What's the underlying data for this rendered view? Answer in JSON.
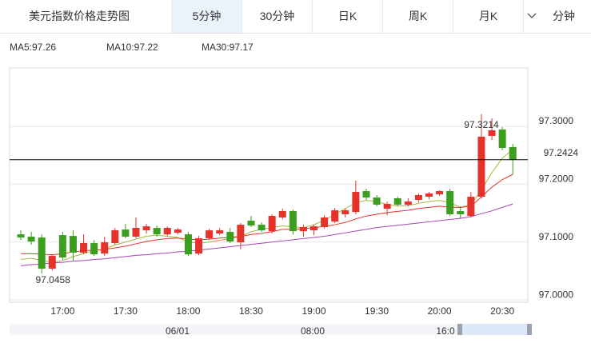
{
  "header": {
    "title": "美元指数价格走势图",
    "tabs": [
      "5分钟",
      "30分钟",
      "日K",
      "周K",
      "月K",
      "分钟"
    ]
  },
  "navigator": {
    "labels": [
      "06/01",
      "08:00",
      "16:0"
    ]
  },
  "chart_data": {
    "type": "candlestick",
    "categories": [
      null,
      null,
      null,
      null,
      "17:00",
      null,
      null,
      null,
      null,
      null,
      "17:30",
      null,
      null,
      null,
      null,
      null,
      "18:00",
      null,
      null,
      null,
      null,
      null,
      "18:30",
      null,
      null,
      null,
      null,
      null,
      "19:00",
      null,
      null,
      null,
      null,
      null,
      "19:30",
      null,
      null,
      null,
      null,
      null,
      "20:00",
      null,
      null,
      null,
      null,
      null,
      "20:30",
      null
    ],
    "open": [
      97.1134,
      97.1093,
      97.1079,
      97.0539,
      97.112,
      97.1106,
      97.0816,
      97.0982,
      97.0802,
      97.0982,
      97.1217,
      97.1093,
      97.1203,
      97.1245,
      97.1134,
      97.1162,
      97.1134,
      97.0802,
      97.1065,
      97.1148,
      97.1176,
      97.0996,
      97.1369,
      97.13,
      97.1189,
      97.1425,
      97.1535,
      97.1189,
      97.1203,
      97.1259,
      97.1355,
      97.148,
      97.1521,
      97.1881,
      97.177,
      97.1577,
      97.1757,
      97.1646,
      97.1729,
      97.1784,
      97.1826,
      97.1881,
      97.1535,
      97.1452,
      97.1784,
      97.2835,
      97.2946,
      97.2642
    ],
    "high": [
      97.1203,
      97.1176,
      97.1134,
      97.0788,
      97.1176,
      97.1203,
      97.1134,
      97.1037,
      97.1093,
      97.1245,
      97.1314,
      97.1425,
      97.1314,
      97.1286,
      97.1272,
      97.1245,
      97.1176,
      97.1106,
      97.1231,
      97.1245,
      97.1245,
      97.1328,
      97.1452,
      97.1342,
      97.148,
      97.1577,
      97.1563,
      97.13,
      97.13,
      97.1466,
      97.1591,
      97.1577,
      97.2061,
      97.1923,
      97.1812,
      97.1701,
      97.1784,
      97.1757,
      97.184,
      97.1867,
      97.1895,
      97.1923,
      97.1618,
      97.1867,
      97.3214,
      97.314,
      97.2988,
      97.2697
    ],
    "low": [
      97.1037,
      97.0954,
      97.0458,
      97.0512,
      97.0692,
      97.0678,
      97.0788,
      97.0761,
      97.0761,
      97.0954,
      97.1065,
      97.1065,
      97.1148,
      97.1093,
      97.1106,
      97.1134,
      97.0761,
      97.0775,
      97.1037,
      97.112,
      97.0982,
      97.0871,
      97.1259,
      97.1176,
      97.1148,
      97.1397,
      97.1134,
      97.1093,
      97.112,
      97.1231,
      97.1328,
      97.1425,
      97.148,
      97.1729,
      97.1618,
      97.1466,
      97.1618,
      97.1618,
      97.1687,
      97.1743,
      97.1798,
      97.1452,
      97.1411,
      97.1425,
      97.1757,
      97.2766,
      97.2586,
      97.2171
    ],
    "close": [
      97.1079,
      97.101,
      97.0539,
      97.0761,
      97.0733,
      97.0816,
      97.0982,
      97.0788,
      97.0996,
      97.1203,
      97.1093,
      97.1245,
      97.1272,
      97.1134,
      97.1245,
      97.1217,
      97.0788,
      97.1065,
      97.1203,
      97.1203,
      97.101,
      97.13,
      97.1286,
      97.1203,
      97.1452,
      97.1535,
      97.1189,
      97.1259,
      97.1272,
      97.1425,
      97.1549,
      97.1549,
      97.1867,
      97.177,
      97.1646,
      97.166,
      97.1646,
      97.1701,
      97.1812,
      97.184,
      97.1881,
      97.148,
      97.148,
      97.1784,
      97.2822,
      97.2932,
      97.2628,
      97.2424
    ],
    "up_color": "#e5322a",
    "down_color": "#3b9e1e",
    "series": [
      {
        "name": "MA5:97.26",
        "color": "#a9b63c",
        "values": [
          97.07,
          97.072,
          97.068,
          97.065,
          97.068,
          97.075,
          97.08,
          97.085,
          97.088,
          97.095,
          97.1,
          97.105,
          97.11,
          97.112,
          97.11,
          97.108,
          97.1,
          97.098,
          97.1,
          97.103,
          97.106,
          97.11,
          97.118,
          97.122,
          97.125,
          97.128,
          97.126,
          97.125,
          97.13,
          97.138,
          97.148,
          97.158,
          97.168,
          97.172,
          97.17,
          97.165,
          97.162,
          97.163,
          97.167,
          97.17,
          97.172,
          97.168,
          97.16,
          97.165,
          97.19,
          97.22,
          97.245,
          97.26
        ]
      },
      {
        "name": "MA10:97.22",
        "color": "#e5322a",
        "values": [
          97.08,
          97.08,
          97.079,
          97.078,
          97.08,
          97.083,
          97.085,
          97.086,
          97.087,
          97.09,
          97.093,
          97.097,
          97.101,
          97.104,
          97.106,
          97.107,
          97.105,
          97.104,
          97.105,
          97.107,
          97.108,
          97.11,
          97.113,
          97.115,
          97.118,
          97.122,
          97.122,
          97.123,
          97.125,
          97.127,
          97.13,
          97.134,
          97.14,
          97.145,
          97.148,
          97.151,
          97.153,
          97.155,
          97.158,
          97.16,
          97.162,
          97.16,
          97.16,
          97.162,
          97.178,
          97.195,
          97.208,
          97.217
        ]
      },
      {
        "name": "MA30:97.17",
        "color": "#a646b4",
        "values": [
          97.059,
          97.061,
          97.062,
          97.064,
          97.065,
          97.067,
          97.068,
          97.07,
          97.071,
          97.073,
          97.075,
          97.077,
          97.078,
          97.08,
          97.081,
          97.083,
          97.084,
          97.086,
          97.088,
          97.09,
          97.092,
          97.094,
          97.096,
          97.098,
          97.1,
          97.102,
          97.104,
          97.106,
          97.108,
          97.11,
          97.113,
          97.116,
          97.119,
          97.122,
          97.125,
          97.127,
          97.129,
          97.131,
          97.133,
          97.135,
          97.137,
          97.139,
          97.141,
          97.144,
          97.149,
          97.154,
          97.16,
          97.166
        ]
      }
    ],
    "ylim": [
      96.996,
      97.401
    ],
    "yticks": [
      {
        "value": 97.0,
        "label": "97.0000"
      },
      {
        "value": 97.1,
        "label": "97.1000"
      },
      {
        "value": 97.2,
        "label": "97.2000"
      },
      {
        "value": 97.3,
        "label": "97.3000"
      }
    ],
    "grid": true,
    "high_label": 97.3214,
    "low_label": 97.0458,
    "last_price": 97.2424
  }
}
